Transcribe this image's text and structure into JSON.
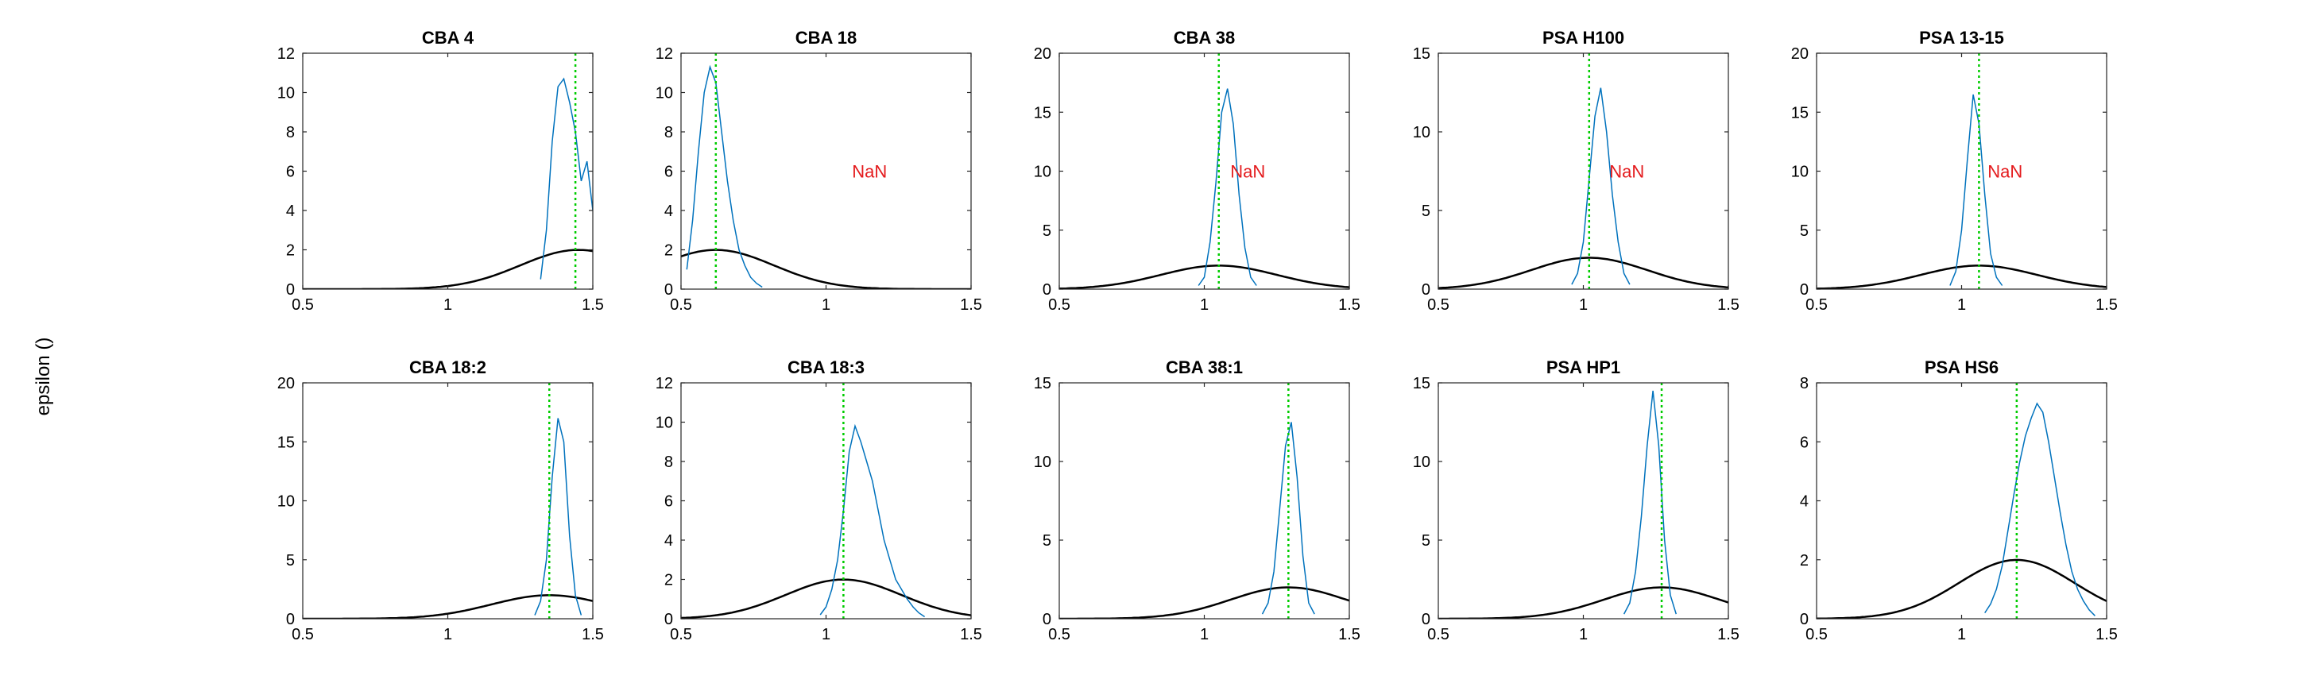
{
  "figure": {
    "ylabel": "epsilon ()"
  },
  "style": {
    "hist_color": "#0072BD",
    "prior_color": "#000000",
    "marker_color": "#00cc00",
    "nan_color": "#e41a1c"
  },
  "chart_data": [
    {
      "type": "area",
      "title": "CBA 4",
      "xlim": [
        0.5,
        1.5
      ],
      "ylim": [
        0,
        12
      ],
      "xticks": [
        "0.5",
        "1",
        "1.5"
      ],
      "yticks": [
        "0",
        "2",
        "4",
        "6",
        "8",
        "10",
        "12"
      ],
      "marker_x": 1.44,
      "prior": {
        "mean": 1.45,
        "sd": 0.2
      },
      "histogram": {
        "x": [
          1.32,
          1.34,
          1.36,
          1.38,
          1.4,
          1.42,
          1.44,
          1.46,
          1.48,
          1.5
        ],
        "y": [
          0.5,
          3,
          7.5,
          10.3,
          10.7,
          9.5,
          8,
          5.5,
          6.5,
          4
        ]
      },
      "annotation": ""
    },
    {
      "type": "area",
      "title": "CBA 18",
      "xlim": [
        0.5,
        1.5
      ],
      "ylim": [
        0,
        12
      ],
      "xticks": [
        "0.5",
        "1",
        "1.5"
      ],
      "yticks": [
        "0",
        "2",
        "4",
        "6",
        "8",
        "10",
        "12"
      ],
      "marker_x": 0.62,
      "prior": {
        "mean": 0.62,
        "sd": 0.2
      },
      "histogram": {
        "x": [
          0.52,
          0.54,
          0.56,
          0.58,
          0.6,
          0.62,
          0.64,
          0.66,
          0.68,
          0.7,
          0.72,
          0.74,
          0.76,
          0.78
        ],
        "y": [
          1,
          3.5,
          7,
          10,
          11.3,
          10.5,
          8,
          5.5,
          3.5,
          2,
          1.2,
          0.6,
          0.3,
          0.1
        ]
      },
      "annotation": "NaN"
    },
    {
      "type": "area",
      "title": "CBA 38",
      "xlim": [
        0.5,
        1.5
      ],
      "ylim": [
        0,
        20
      ],
      "xticks": [
        "0.5",
        "1",
        "1.5"
      ],
      "yticks": [
        "0",
        "5",
        "10",
        "15",
        "20"
      ],
      "marker_x": 1.05,
      "prior": {
        "mean": 1.05,
        "sd": 0.2
      },
      "histogram": {
        "x": [
          0.98,
          1.0,
          1.02,
          1.04,
          1.06,
          1.08,
          1.1,
          1.12,
          1.14,
          1.16,
          1.18
        ],
        "y": [
          0.3,
          1,
          4,
          9,
          15,
          17,
          14,
          8,
          3.5,
          1,
          0.3
        ]
      },
      "annotation": "NaN"
    },
    {
      "type": "area",
      "title": "PSA H100",
      "xlim": [
        0.5,
        1.5
      ],
      "ylim": [
        0,
        15
      ],
      "xticks": [
        "0.5",
        "1",
        "1.5"
      ],
      "yticks": [
        "0",
        "5",
        "10",
        "15"
      ],
      "marker_x": 1.02,
      "prior": {
        "mean": 1.02,
        "sd": 0.2
      },
      "histogram": {
        "x": [
          0.96,
          0.98,
          1.0,
          1.02,
          1.04,
          1.06,
          1.08,
          1.1,
          1.12,
          1.14,
          1.16
        ],
        "y": [
          0.3,
          1,
          3,
          7,
          11,
          12.8,
          10,
          6,
          3,
          1,
          0.3
        ]
      },
      "annotation": "NaN"
    },
    {
      "type": "area",
      "title": "PSA 13-15",
      "xlim": [
        0.5,
        1.5
      ],
      "ylim": [
        0,
        20
      ],
      "xticks": [
        "0.5",
        "1",
        "1.5"
      ],
      "yticks": [
        "0",
        "5",
        "10",
        "15",
        "20"
      ],
      "marker_x": 1.06,
      "prior": {
        "mean": 1.06,
        "sd": 0.2
      },
      "histogram": {
        "x": [
          0.96,
          0.98,
          1.0,
          1.02,
          1.04,
          1.06,
          1.08,
          1.1,
          1.12,
          1.14
        ],
        "y": [
          0.3,
          1.5,
          5,
          11,
          16.5,
          14,
          8,
          3,
          1,
          0.3
        ]
      },
      "annotation": "NaN"
    },
    {
      "type": "area",
      "title": "CBA 18:2",
      "xlim": [
        0.5,
        1.5
      ],
      "ylim": [
        0,
        20
      ],
      "xticks": [
        "0.5",
        "1",
        "1.5"
      ],
      "yticks": [
        "0",
        "5",
        "10",
        "15",
        "20"
      ],
      "marker_x": 1.35,
      "prior": {
        "mean": 1.35,
        "sd": 0.2
      },
      "histogram": {
        "x": [
          1.3,
          1.32,
          1.34,
          1.36,
          1.38,
          1.4,
          1.42,
          1.44,
          1.46
        ],
        "y": [
          0.3,
          1.5,
          5,
          12,
          17,
          15,
          7,
          2,
          0.3
        ]
      },
      "annotation": ""
    },
    {
      "type": "area",
      "title": "CBA 18:3",
      "xlim": [
        0.5,
        1.5
      ],
      "ylim": [
        0,
        12
      ],
      "xticks": [
        "0.5",
        "1",
        "1.5"
      ],
      "yticks": [
        "0",
        "2",
        "4",
        "6",
        "8",
        "10",
        "12"
      ],
      "marker_x": 1.06,
      "prior": {
        "mean": 1.06,
        "sd": 0.2
      },
      "histogram": {
        "x": [
          0.98,
          1.0,
          1.02,
          1.04,
          1.06,
          1.08,
          1.1,
          1.12,
          1.14,
          1.16,
          1.18,
          1.2,
          1.22,
          1.24,
          1.26,
          1.28,
          1.3,
          1.32,
          1.34
        ],
        "y": [
          0.2,
          0.6,
          1.5,
          3,
          5.5,
          8.5,
          9.8,
          9,
          8,
          7,
          5.5,
          4,
          3,
          2,
          1.5,
          1,
          0.6,
          0.3,
          0.1
        ]
      },
      "annotation": ""
    },
    {
      "type": "area",
      "title": "CBA 38:1",
      "xlim": [
        0.5,
        1.5
      ],
      "ylim": [
        0,
        15
      ],
      "xticks": [
        "0.5",
        "1",
        "1.5"
      ],
      "yticks": [
        "0",
        "5",
        "10",
        "15"
      ],
      "marker_x": 1.29,
      "prior": {
        "mean": 1.29,
        "sd": 0.2
      },
      "histogram": {
        "x": [
          1.2,
          1.22,
          1.24,
          1.26,
          1.28,
          1.3,
          1.32,
          1.34,
          1.36,
          1.38
        ],
        "y": [
          0.3,
          1,
          3,
          7,
          11,
          12.5,
          9,
          4,
          1,
          0.3
        ]
      },
      "annotation": ""
    },
    {
      "type": "area",
      "title": "PSA HP1",
      "xlim": [
        0.5,
        1.5
      ],
      "ylim": [
        0,
        15
      ],
      "xticks": [
        "0.5",
        "1",
        "1.5"
      ],
      "yticks": [
        "0",
        "5",
        "10",
        "15"
      ],
      "marker_x": 1.27,
      "prior": {
        "mean": 1.27,
        "sd": 0.2
      },
      "histogram": {
        "x": [
          1.14,
          1.16,
          1.18,
          1.2,
          1.22,
          1.24,
          1.26,
          1.28,
          1.3,
          1.32
        ],
        "y": [
          0.3,
          1,
          3,
          6.5,
          11,
          14.5,
          11,
          5,
          1.5,
          0.3
        ]
      },
      "annotation": ""
    },
    {
      "type": "area",
      "title": "PSA HS6",
      "xlim": [
        0.5,
        1.5
      ],
      "ylim": [
        0,
        8
      ],
      "xticks": [
        "0.5",
        "1",
        "1.5"
      ],
      "yticks": [
        "0",
        "2",
        "4",
        "6",
        "8"
      ],
      "marker_x": 1.19,
      "prior": {
        "mean": 1.19,
        "sd": 0.2
      },
      "histogram": {
        "x": [
          1.08,
          1.1,
          1.12,
          1.14,
          1.16,
          1.18,
          1.2,
          1.22,
          1.24,
          1.26,
          1.28,
          1.3,
          1.32,
          1.34,
          1.36,
          1.38,
          1.4,
          1.42,
          1.44,
          1.46
        ],
        "y": [
          0.2,
          0.5,
          1,
          1.8,
          3,
          4.2,
          5.3,
          6.2,
          6.8,
          7.3,
          7,
          6,
          4.8,
          3.6,
          2.5,
          1.6,
          1,
          0.6,
          0.3,
          0.1
        ]
      },
      "annotation": ""
    }
  ]
}
